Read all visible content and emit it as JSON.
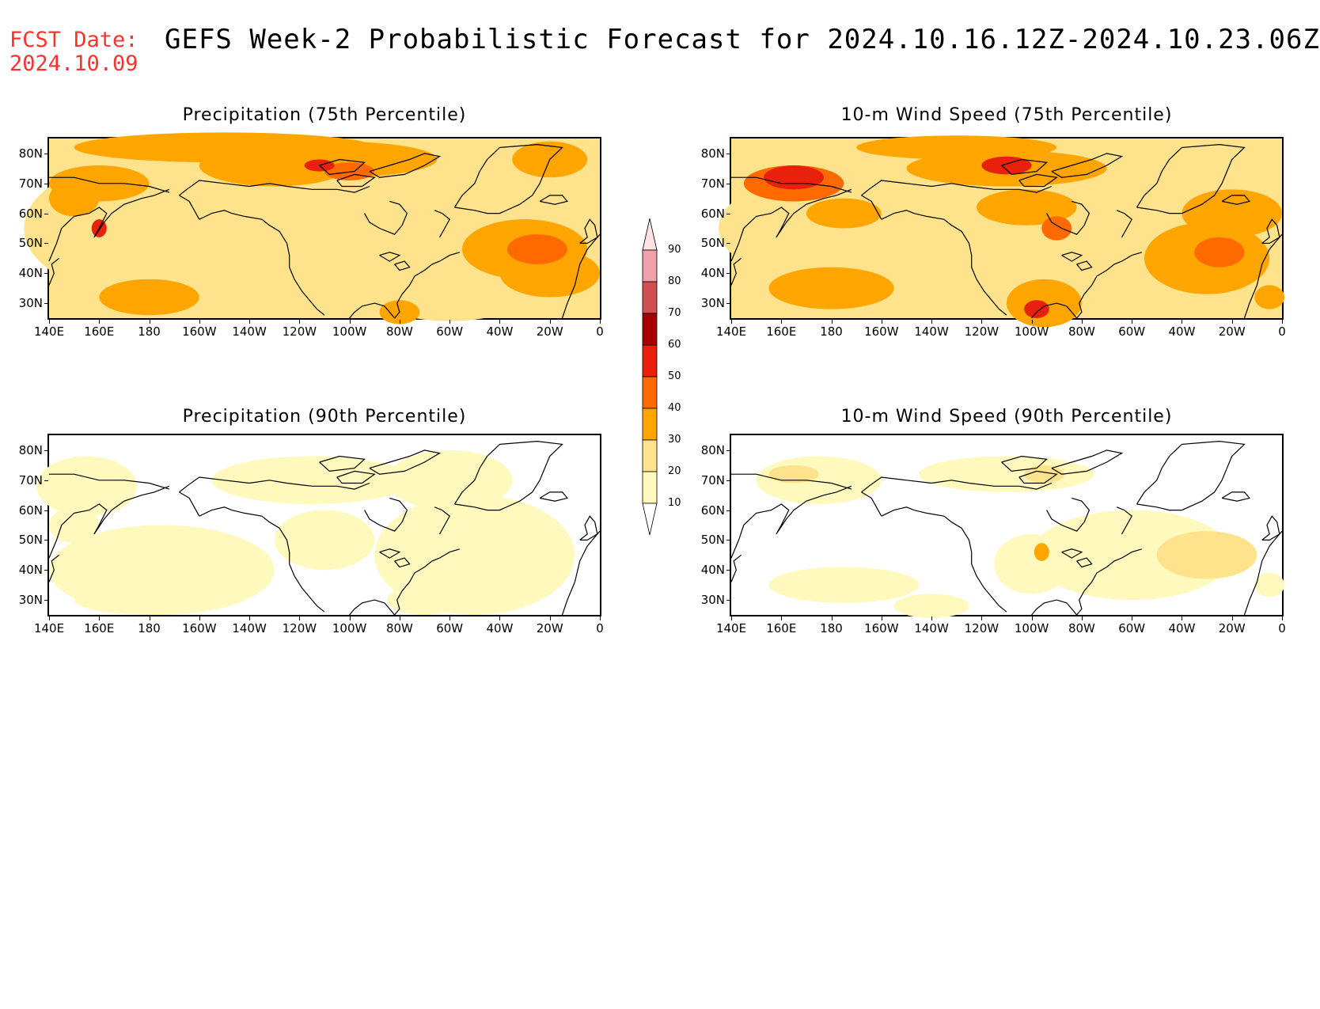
{
  "header": {
    "fcst_label": "FCST Date:",
    "fcst_date": "2024.10.09",
    "title": "GEFS Week-2 Probabilistic Forecast for 2024.10.16.12Z-2024.10.23.06Z"
  },
  "panels": [
    {
      "title": "Precipitation (75th Percentile)",
      "intensity": "high"
    },
    {
      "title": "10-m Wind Speed (75th Percentile)",
      "intensity": "high"
    },
    {
      "title": "Precipitation (90th Percentile)",
      "intensity": "low"
    },
    {
      "title": "10-m Wind Speed (90th Percentile)",
      "intensity": "low"
    }
  ],
  "axes": {
    "lat_labels": [
      "80N",
      "70N",
      "60N",
      "50N",
      "40N",
      "30N"
    ],
    "lon_labels": [
      "140E",
      "160E",
      "180",
      "160W",
      "140W",
      "120W",
      "100W",
      "80W",
      "60W",
      "40W",
      "20W",
      "0"
    ]
  },
  "colorbar": {
    "levels": [
      "10",
      "20",
      "30",
      "40",
      "50",
      "60",
      "70",
      "80",
      "90"
    ],
    "colors": [
      "#fff9bd",
      "#ffe38c",
      "#ffa500",
      "#ff6a00",
      "#e8200c",
      "#a80000",
      "#d05050",
      "#f0a0a8",
      "#ffe0e4"
    ]
  }
}
